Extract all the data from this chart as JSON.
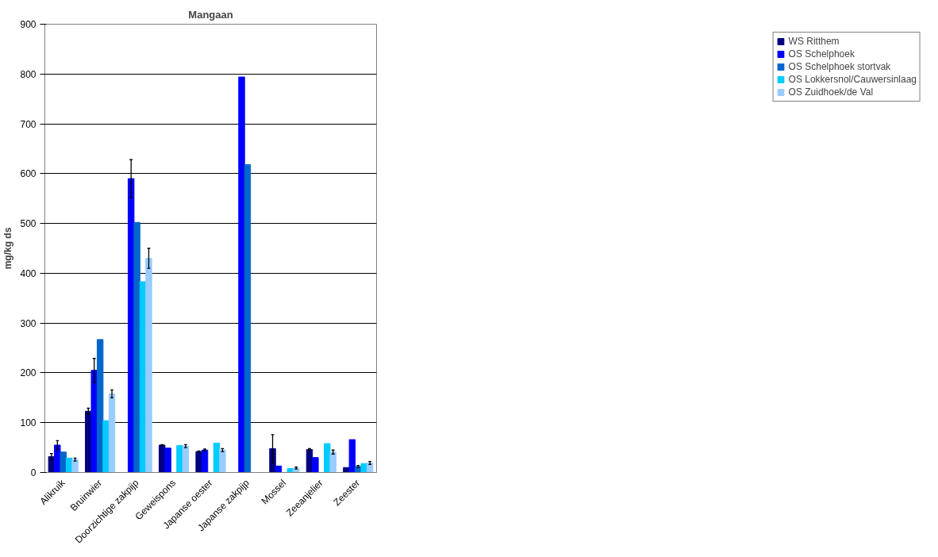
{
  "chart_data": {
    "type": "bar",
    "title": "Mangaan",
    "ylabel": "mg/kg ds",
    "categories": [
      "Alikruik",
      "Bruinwier",
      "Doorzichtige zakpijp",
      "Geweispons",
      "Japanse oester",
      "Japanse zakpijp",
      "Mossel",
      "Zeeanjelier",
      "Zeester"
    ],
    "ylim": [
      0,
      900
    ],
    "yticks": [
      0,
      100,
      200,
      300,
      400,
      500,
      600,
      700,
      800,
      900
    ],
    "grid": "y",
    "legend": "right",
    "series": [
      {
        "name": "WS Ritthem",
        "color": "#000080",
        "values": [
          32,
          123,
          null,
          55,
          42,
          null,
          48,
          46,
          10
        ],
        "errors": [
          6,
          6,
          null,
          1,
          1,
          null,
          28,
          2,
          null
        ]
      },
      {
        "name": "OS Schelphoek",
        "color": "#0000ff",
        "values": [
          55,
          205,
          590,
          49,
          45,
          794,
          13,
          30,
          66
        ],
        "errors": [
          9,
          24,
          38,
          null,
          2,
          null,
          null,
          null,
          null
        ]
      },
      {
        "name": "OS Schelphoek stortvak",
        "color": "#0066cc",
        "values": [
          41,
          267,
          502,
          null,
          null,
          618,
          null,
          null,
          12
        ],
        "errors": [
          null,
          null,
          null,
          null,
          null,
          null,
          null,
          null,
          2
        ]
      },
      {
        "name": "OS Lokkersnol/Cauwersinlaag",
        "color": "#00ccff",
        "values": [
          29,
          104,
          383,
          54,
          59,
          null,
          8,
          58,
          18
        ],
        "errors": [
          null,
          null,
          null,
          null,
          null,
          null,
          null,
          null,
          null
        ]
      },
      {
        "name": "OS Zuidhoek/de Val",
        "color": "#99ccff",
        "values": [
          26,
          158,
          430,
          53,
          45,
          null,
          9,
          41,
          19
        ],
        "errors": [
          3,
          8,
          20,
          3,
          3,
          null,
          2,
          4,
          3
        ]
      }
    ]
  }
}
